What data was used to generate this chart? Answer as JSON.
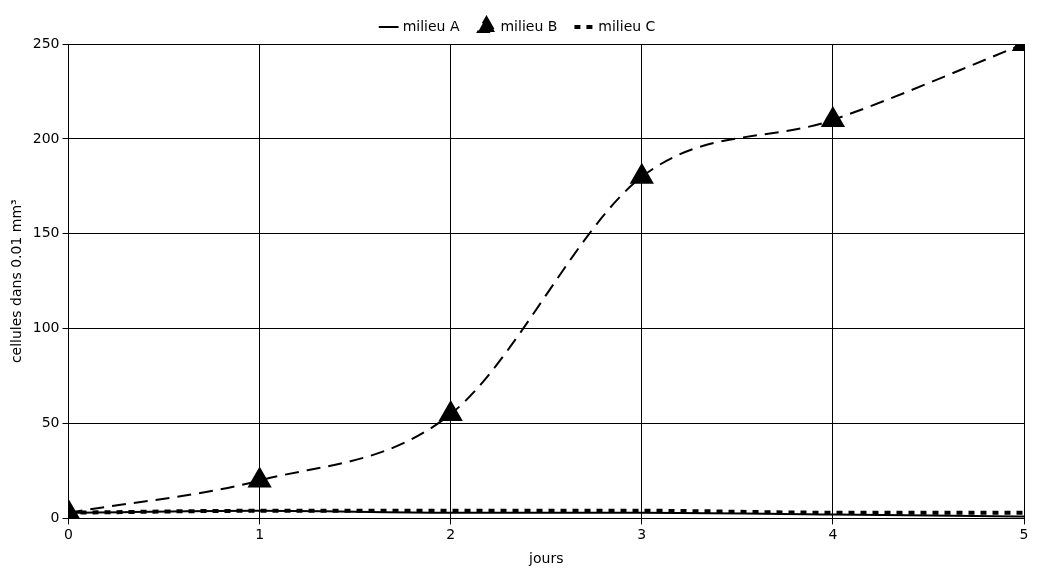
{
  "chart_data": {
    "type": "line",
    "xlabel": "jours",
    "ylabel": "cellules dans 0.01 mm³",
    "x": [
      0,
      1,
      2,
      3,
      4,
      5
    ],
    "series": [
      {
        "name": "milieu A",
        "color": "#000000",
        "values": [
          3,
          4,
          3,
          3,
          2,
          1
        ],
        "line_style": "solid",
        "marker": "none"
      },
      {
        "name": "milieu B",
        "color": "#000000",
        "values": [
          3,
          20,
          55,
          180,
          210,
          250
        ],
        "line_style": "dashed",
        "marker": "triangle"
      },
      {
        "name": "milieu C",
        "color": "#000000",
        "values": [
          3,
          4,
          4,
          4,
          3,
          3
        ],
        "line_style": "dotted",
        "marker": "none"
      }
    ],
    "xlim": [
      0,
      5
    ],
    "xticks": [
      0,
      1,
      2,
      3,
      4,
      5
    ],
    "ylim": [
      0,
      250
    ],
    "yticks": [
      0,
      50,
      100,
      150,
      200,
      250
    ],
    "grid": true,
    "legend": "top"
  }
}
